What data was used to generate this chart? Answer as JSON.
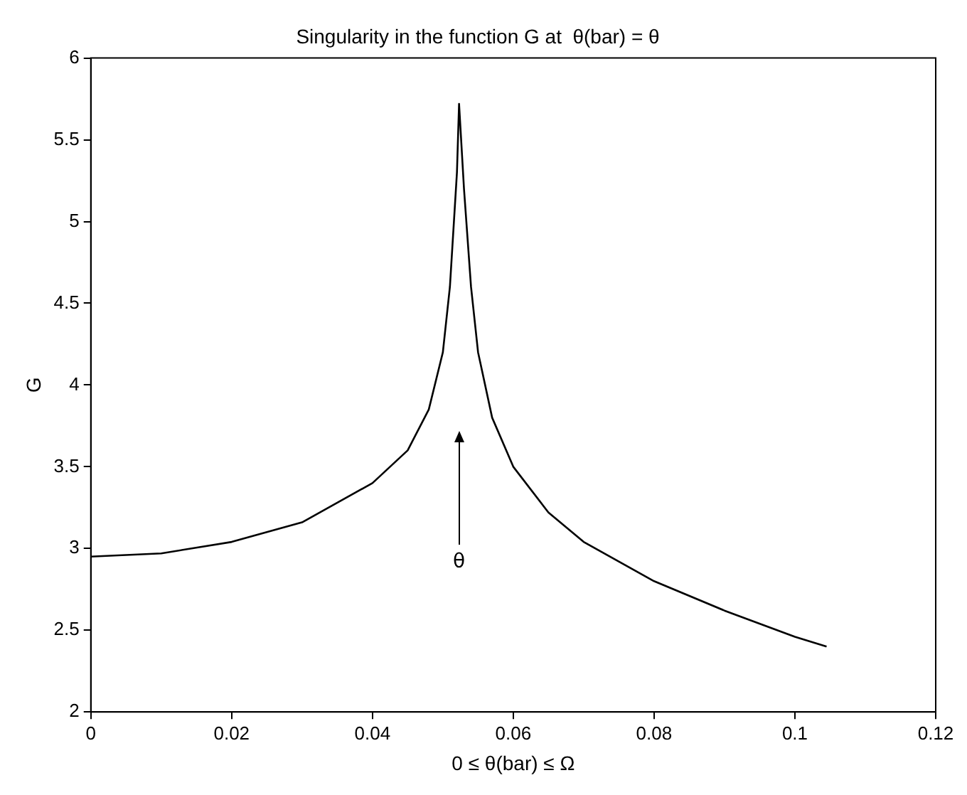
{
  "chart_data": {
    "type": "line",
    "title": "Singularity in the function G at  θ(bar) = θ",
    "xlabel": "0 ≤ θ(bar) ≤ Ω",
    "ylabel": "G",
    "x": [
      0,
      0.01,
      0.02,
      0.03,
      0.04,
      0.045,
      0.048,
      0.05,
      0.051,
      0.052,
      0.0523,
      0.053,
      0.054,
      0.055,
      0.057,
      0.06,
      0.065,
      0.07,
      0.08,
      0.09,
      0.1,
      0.1045
    ],
    "series": [
      {
        "color": "#000000",
        "values": [
          2.95,
          2.97,
          3.04,
          3.16,
          3.4,
          3.6,
          3.85,
          4.2,
          4.6,
          5.3,
          5.72,
          5.2,
          4.6,
          4.2,
          3.8,
          3.5,
          3.22,
          3.04,
          2.8,
          2.62,
          2.46,
          2.4
        ]
      }
    ],
    "xlim": [
      0,
      0.12
    ],
    "xticks": [
      0,
      0.02,
      0.04,
      0.06,
      0.08,
      {
        "value": 0.1,
        "label": "0.1"
      },
      0.12
    ],
    "ylim": [
      2,
      6
    ],
    "yticks": [
      2,
      2.5,
      3,
      3.5,
      4,
      4.5,
      5,
      5.5,
      6
    ],
    "annotations": [
      "θ"
    ],
    "grid": false,
    "legend": false,
    "marker": "none",
    "line_style": "solid"
  }
}
